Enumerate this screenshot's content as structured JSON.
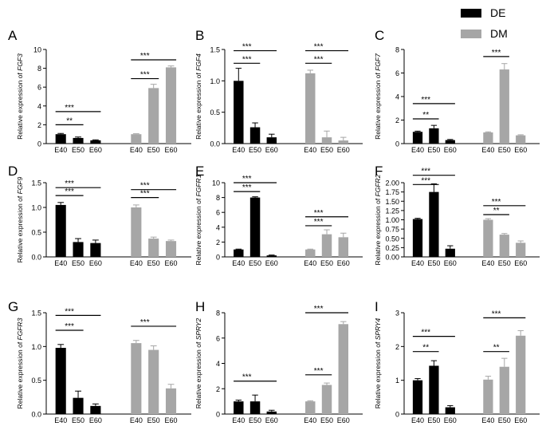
{
  "legend": {
    "position": "top-right",
    "entries": [
      {
        "name": "DE",
        "color": "#000000"
      },
      {
        "name": "DM",
        "color": "#a6a6a6"
      }
    ]
  },
  "chart_data": [
    {
      "letter": "A",
      "type": "bar",
      "gene": "FGF3",
      "ylabel_prefix": "Relative expression of ",
      "categories": [
        "E40",
        "E50",
        "E60"
      ],
      "ylim": [
        0,
        10
      ],
      "yticks": [
        "0",
        "2",
        "4",
        "6",
        "8",
        "10"
      ],
      "ytick_values": [
        0,
        2,
        4,
        6,
        8,
        10
      ],
      "series": [
        {
          "name": "DE",
          "values": [
            1.0,
            0.6,
            0.35
          ],
          "errors": [
            0.08,
            0.1,
            0.05
          ]
        },
        {
          "name": "DM",
          "values": [
            1.0,
            5.9,
            8.1
          ],
          "errors": [
            0.05,
            0.4,
            0.15
          ]
        }
      ],
      "annotations": [
        {
          "series": "DE",
          "from": 0,
          "to": 1,
          "label": "**",
          "y": 2.0
        },
        {
          "series": "DE",
          "from": 0,
          "to": 2,
          "label": "***",
          "y": 3.4
        },
        {
          "series": "DM",
          "from": 0,
          "to": 1,
          "label": "***",
          "y": 6.9
        },
        {
          "series": "DM",
          "from": 0,
          "to": 2,
          "label": "***",
          "y": 8.9
        }
      ]
    },
    {
      "letter": "B",
      "type": "bar",
      "gene": "FGF4",
      "ylabel_prefix": "Relative expression of ",
      "categories": [
        "E40",
        "E50",
        "E60"
      ],
      "ylim": [
        0,
        1.5
      ],
      "yticks": [
        "0.0",
        "0.5",
        "1.0",
        "1.5"
      ],
      "ytick_values": [
        0,
        0.5,
        1.0,
        1.5
      ],
      "series": [
        {
          "name": "DE",
          "values": [
            1.0,
            0.26,
            0.1
          ],
          "errors": [
            0.2,
            0.07,
            0.05
          ]
        },
        {
          "name": "DM",
          "values": [
            1.12,
            0.1,
            0.05
          ],
          "errors": [
            0.05,
            0.1,
            0.05
          ]
        }
      ],
      "annotations": [
        {
          "series": "DE",
          "from": 0,
          "to": 1,
          "label": "***",
          "y": 1.28
        },
        {
          "series": "DE",
          "from": 0,
          "to": 2,
          "label": "***",
          "y": 1.48
        },
        {
          "series": "DM",
          "from": 0,
          "to": 1,
          "label": "***",
          "y": 1.28
        },
        {
          "series": "DM",
          "from": 0,
          "to": 2,
          "label": "***",
          "y": 1.48
        }
      ]
    },
    {
      "letter": "C",
      "type": "bar",
      "gene": "FGF7",
      "ylabel_prefix": "Relative expression of ",
      "categories": [
        "E40",
        "E50",
        "E60"
      ],
      "ylim": [
        0,
        8
      ],
      "yticks": [
        "0",
        "2",
        "4",
        "6",
        "8"
      ],
      "ytick_values": [
        0,
        2,
        4,
        6,
        8
      ],
      "series": [
        {
          "name": "DE",
          "values": [
            1.0,
            1.3,
            0.3
          ],
          "errors": [
            0.06,
            0.25,
            0.05
          ]
        },
        {
          "name": "DM",
          "values": [
            0.95,
            6.3,
            0.7
          ],
          "errors": [
            0.05,
            0.5,
            0.05
          ]
        }
      ],
      "annotations": [
        {
          "series": "DE",
          "from": 0,
          "to": 1,
          "label": "**",
          "y": 2.1
        },
        {
          "series": "DE",
          "from": 0,
          "to": 2,
          "label": "***",
          "y": 3.4
        },
        {
          "series": "DM",
          "from": 0,
          "to": 1,
          "label": "***",
          "y": 7.4
        }
      ]
    },
    {
      "letter": "D",
      "type": "bar",
      "gene": "FGF9",
      "ylabel_prefix": "Relative expression of ",
      "categories": [
        "E40",
        "E50",
        "E60"
      ],
      "ylim": [
        0,
        1.5
      ],
      "yticks": [
        "0.0",
        "0.5",
        "1.0",
        "1.5"
      ],
      "ytick_values": [
        0,
        0.5,
        1.0,
        1.5
      ],
      "series": [
        {
          "name": "DE",
          "values": [
            1.05,
            0.3,
            0.28
          ],
          "errors": [
            0.05,
            0.07,
            0.06
          ]
        },
        {
          "name": "DM",
          "values": [
            1.0,
            0.37,
            0.32
          ],
          "errors": [
            0.05,
            0.03,
            0.02
          ]
        }
      ],
      "annotations": [
        {
          "series": "DE",
          "from": 0,
          "to": 1,
          "label": "***",
          "y": 1.24
        },
        {
          "series": "DE",
          "from": 0,
          "to": 2,
          "label": "***",
          "y": 1.4
        },
        {
          "series": "DM",
          "from": 0,
          "to": 1,
          "label": "***",
          "y": 1.2
        },
        {
          "series": "DM",
          "from": 0,
          "to": 2,
          "label": "***",
          "y": 1.36
        }
      ]
    },
    {
      "letter": "E",
      "type": "bar",
      "gene": "FGFR1",
      "ylabel_prefix": "Relative expression of ",
      "categories": [
        "E40",
        "E50",
        "E60"
      ],
      "ylim": [
        0,
        10
      ],
      "yticks": [
        "0",
        "2",
        "4",
        "6",
        "8",
        "10"
      ],
      "ytick_values": [
        0,
        2,
        4,
        6,
        8,
        10
      ],
      "series": [
        {
          "name": "DE",
          "values": [
            1.0,
            8.0,
            0.2
          ],
          "errors": [
            0.05,
            0.1,
            0.05
          ]
        },
        {
          "name": "DM",
          "values": [
            1.0,
            3.05,
            2.65
          ],
          "errors": [
            0.05,
            0.6,
            0.55
          ]
        }
      ],
      "annotations": [
        {
          "series": "DE",
          "from": 0,
          "to": 1,
          "label": "***",
          "y": 8.8
        },
        {
          "series": "DE",
          "from": 0,
          "to": 2,
          "label": "***",
          "y": 10.0
        },
        {
          "series": "DM",
          "from": 0,
          "to": 1,
          "label": "***",
          "y": 4.2
        },
        {
          "series": "DM",
          "from": 0,
          "to": 2,
          "label": "***",
          "y": 5.4
        }
      ]
    },
    {
      "letter": "F",
      "type": "bar",
      "gene": "FGFR2",
      "ylabel_prefix": "Relative expression of ",
      "categories": [
        "E40",
        "E50",
        "E60"
      ],
      "ylim": [
        0,
        2.0
      ],
      "yticks": [
        "0.00",
        "0.25",
        "0.50",
        "0.75",
        "1.00",
        "1.25",
        "1.50",
        "1.75",
        "2.00"
      ],
      "ytick_values": [
        0,
        0.25,
        0.5,
        0.75,
        1.0,
        1.25,
        1.5,
        1.75,
        2.0
      ],
      "series": [
        {
          "name": "DE",
          "values": [
            1.02,
            1.75,
            0.22
          ],
          "errors": [
            0.02,
            0.22,
            0.08
          ]
        },
        {
          "name": "DM",
          "values": [
            1.0,
            0.6,
            0.38
          ],
          "errors": [
            0.03,
            0.03,
            0.05
          ]
        }
      ],
      "annotations": [
        {
          "series": "DE",
          "from": 0,
          "to": 1,
          "label": "***",
          "y": 1.95
        },
        {
          "series": "DE",
          "from": 0,
          "to": 2,
          "label": "***",
          "y": 2.2
        },
        {
          "series": "DM",
          "from": 0,
          "to": 1,
          "label": "**",
          "y": 1.14
        },
        {
          "series": "DM",
          "from": 0,
          "to": 2,
          "label": "***",
          "y": 1.38
        }
      ]
    },
    {
      "letter": "G",
      "type": "bar",
      "gene": "FGFR3",
      "ylabel_prefix": "Relative expression of ",
      "categories": [
        "E40",
        "E50",
        "E60"
      ],
      "ylim": [
        0,
        1.5
      ],
      "yticks": [
        "0.0",
        "0.5",
        "1.0",
        "1.5"
      ],
      "ytick_values": [
        0,
        0.5,
        1.0,
        1.5
      ],
      "series": [
        {
          "name": "DE",
          "values": [
            0.98,
            0.24,
            0.12
          ],
          "errors": [
            0.05,
            0.1,
            0.03
          ]
        },
        {
          "name": "DM",
          "values": [
            1.05,
            0.95,
            0.38
          ],
          "errors": [
            0.04,
            0.06,
            0.06
          ]
        }
      ],
      "annotations": [
        {
          "series": "DE",
          "from": 0,
          "to": 1,
          "label": "***",
          "y": 1.24
        },
        {
          "series": "DE",
          "from": 0,
          "to": 2,
          "label": "***",
          "y": 1.46
        },
        {
          "series": "DM",
          "from": 0,
          "to": 2,
          "label": "***",
          "y": 1.3
        }
      ]
    },
    {
      "letter": "H",
      "type": "bar",
      "gene": "SPRY2",
      "ylabel_prefix": "Relative expression of ",
      "categories": [
        "E40",
        "E50",
        "E60"
      ],
      "ylim": [
        0,
        8
      ],
      "yticks": [
        "0",
        "2",
        "4",
        "6",
        "8"
      ],
      "ytick_values": [
        0,
        2,
        4,
        6,
        8
      ],
      "series": [
        {
          "name": "DE",
          "values": [
            1.0,
            1.0,
            0.2
          ],
          "errors": [
            0.1,
            0.5,
            0.1
          ]
        },
        {
          "name": "DM",
          "values": [
            1.0,
            2.3,
            7.1
          ],
          "errors": [
            0.05,
            0.15,
            0.2
          ]
        }
      ],
      "annotations": [
        {
          "series": "DE",
          "from": 0,
          "to": 2,
          "label": "***",
          "y": 2.6
        },
        {
          "series": "DM",
          "from": 0,
          "to": 1,
          "label": "***",
          "y": 3.1
        },
        {
          "series": "DM",
          "from": 0,
          "to": 2,
          "label": "***",
          "y": 8.0
        }
      ]
    },
    {
      "letter": "I",
      "type": "bar",
      "gene": "SPRY4",
      "ylabel_prefix": "Relative expression of ",
      "categories": [
        "E40",
        "E50",
        "E60"
      ],
      "ylim": [
        0,
        3
      ],
      "yticks": [
        "0",
        "1",
        "2",
        "3"
      ],
      "ytick_values": [
        0,
        1,
        2,
        3
      ],
      "series": [
        {
          "name": "DE",
          "values": [
            1.0,
            1.43,
            0.2
          ],
          "errors": [
            0.05,
            0.15,
            0.05
          ]
        },
        {
          "name": "DM",
          "values": [
            1.02,
            1.4,
            2.32
          ],
          "errors": [
            0.1,
            0.25,
            0.15
          ]
        }
      ],
      "annotations": [
        {
          "series": "DE",
          "from": 0,
          "to": 1,
          "label": "**",
          "y": 1.85
        },
        {
          "series": "DE",
          "from": 0,
          "to": 2,
          "label": "***",
          "y": 2.3
        },
        {
          "series": "DM",
          "from": 0,
          "to": 1,
          "label": "**",
          "y": 1.85
        },
        {
          "series": "DM",
          "from": 0,
          "to": 2,
          "label": "***",
          "y": 2.85
        }
      ]
    }
  ]
}
